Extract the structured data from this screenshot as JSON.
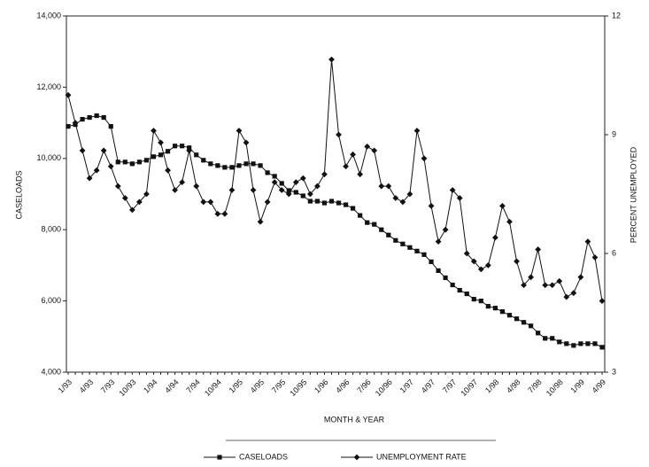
{
  "chart_data": {
    "type": "line",
    "x_label": "MONTH & YEAR",
    "y_label": "CASELOADS",
    "y2_label": "PERCENT UNEMPLOYED",
    "categories": [
      "1/93",
      null,
      null,
      "4/93",
      null,
      null,
      "7/93",
      null,
      null,
      "10/93",
      null,
      null,
      "1/94",
      null,
      null,
      "4/94",
      null,
      null,
      "7/94",
      null,
      null,
      "10/94",
      null,
      null,
      "1/95",
      null,
      null,
      "4/95",
      null,
      null,
      "7/95",
      null,
      null,
      "10/95",
      null,
      null,
      "1/96",
      null,
      null,
      "4/96",
      null,
      null,
      "7/96",
      null,
      null,
      "10/96",
      null,
      null,
      "1/97",
      null,
      null,
      "4/97",
      null,
      null,
      "7/97",
      null,
      null,
      "10/97",
      null,
      null,
      "1/98",
      null,
      null,
      "4/98",
      null,
      null,
      "7/98",
      null,
      null,
      "10/98",
      null,
      null,
      "1/99",
      null,
      null,
      "4/99"
    ],
    "series": [
      {
        "name": "CASELOADS",
        "color": "#111",
        "marker": "square",
        "values": [
          10900,
          10950,
          11100,
          11150,
          11200,
          11150,
          10900,
          9900,
          9900,
          9850,
          9900,
          9950,
          10050,
          10100,
          10200,
          10350,
          10350,
          10300,
          10100,
          9950,
          9850,
          9800,
          9750,
          9750,
          9800,
          9850,
          9850,
          9800,
          9600,
          9500,
          9300,
          9100,
          9050,
          8950,
          8800,
          8800,
          8750,
          8800,
          8750,
          8700,
          8600,
          8400,
          8200,
          8150,
          8000,
          7850,
          7700,
          7600,
          7500,
          7400,
          7300,
          7100,
          6850,
          6650,
          6450,
          6300,
          6200,
          6050,
          6000,
          5850,
          5800,
          5700,
          5600,
          5500,
          5400,
          5300,
          5100,
          4950,
          4950,
          4850,
          4800,
          4750,
          4800,
          4800,
          4800,
          4700
        ]
      },
      {
        "name": "UNEMPLOYMENT RATE",
        "color": "#111",
        "marker": "diamond",
        "axis": "y2",
        "values": [
          10.0,
          9.3,
          8.6,
          7.9,
          8.1,
          8.6,
          8.2,
          7.7,
          7.4,
          7.1,
          7.3,
          7.5,
          9.1,
          8.8,
          8.1,
          7.6,
          7.8,
          8.6,
          7.7,
          7.3,
          7.3,
          7.0,
          7.0,
          7.6,
          9.1,
          8.8,
          7.6,
          6.8,
          7.3,
          7.8,
          7.6,
          7.5,
          7.8,
          7.9,
          7.5,
          7.7,
          8.0,
          10.9,
          9.0,
          8.2,
          8.5,
          8.0,
          8.7,
          8.6,
          7.7,
          7.7,
          7.4,
          7.3,
          7.5,
          9.1,
          8.4,
          7.2,
          6.3,
          6.6,
          7.6,
          7.4,
          6.0,
          5.8,
          5.6,
          5.7,
          6.4,
          7.2,
          6.8,
          5.8,
          5.2,
          5.4,
          6.1,
          5.2,
          5.2,
          5.3,
          4.9,
          5.0,
          5.4,
          6.3,
          5.9,
          4.8
        ]
      }
    ],
    "ylim": [
      4000,
      14000
    ],
    "yticks": [
      {
        "value": 4000,
        "label": "4,000"
      },
      {
        "value": 6000,
        "label": "6,000"
      },
      {
        "value": 8000,
        "label": "8,000"
      },
      {
        "value": 10000,
        "label": "10,000"
      },
      {
        "value": 12000,
        "label": "12,000"
      },
      {
        "value": 14000,
        "label": "14,000"
      }
    ],
    "y2lim": [
      3,
      12
    ],
    "y2ticks": [
      3,
      6,
      9,
      12
    ],
    "grid": false,
    "legend": "bottom"
  }
}
